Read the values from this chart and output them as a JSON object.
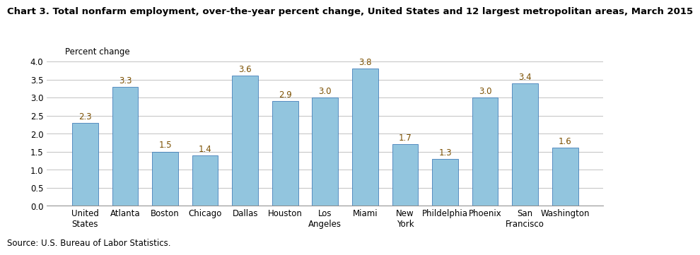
{
  "title": "Chart 3. Total nonfarm employment, over-the-year percent change, United States and 12 largest metropolitan areas, March 2015",
  "ylabel": "Percent change",
  "source": "Source: U.S. Bureau of Labor Statistics.",
  "categories": [
    "United\nStates",
    "Atlanta",
    "Boston",
    "Chicago",
    "Dallas",
    "Houston",
    "Los\nAngeles",
    "Miami",
    "New\nYork",
    "Phildelphia",
    "Phoenix",
    "San\nFrancisco",
    "Washington"
  ],
  "values": [
    2.3,
    3.3,
    1.5,
    1.4,
    3.6,
    2.9,
    3.0,
    3.8,
    1.7,
    1.3,
    3.0,
    3.4,
    1.6
  ],
  "bar_color": "#92c5de",
  "bar_edge_color": "#2b6cb0",
  "label_color": "#7b4f00",
  "ylim": [
    0,
    4.0
  ],
  "yticks": [
    0.0,
    0.5,
    1.0,
    1.5,
    2.0,
    2.5,
    3.0,
    3.5,
    4.0
  ],
  "grid_color": "#b8b8b8",
  "title_fontsize": 9.5,
  "axis_label_fontsize": 8.5,
  "tick_label_fontsize": 8.5,
  "value_label_fontsize": 8.5,
  "source_fontsize": 8.5,
  "background_color": "#ffffff"
}
